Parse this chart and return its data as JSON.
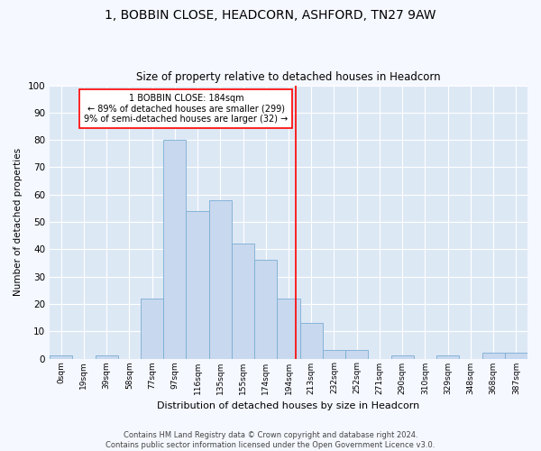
{
  "title": "1, BOBBIN CLOSE, HEADCORN, ASHFORD, TN27 9AW",
  "subtitle": "Size of property relative to detached houses in Headcorn",
  "xlabel": "Distribution of detached houses by size in Headcorn",
  "ylabel": "Number of detached properties",
  "bar_labels": [
    "0sqm",
    "19sqm",
    "39sqm",
    "58sqm",
    "77sqm",
    "97sqm",
    "116sqm",
    "135sqm",
    "155sqm",
    "174sqm",
    "194sqm",
    "213sqm",
    "232sqm",
    "252sqm",
    "271sqm",
    "290sqm",
    "310sqm",
    "329sqm",
    "348sqm",
    "368sqm",
    "387sqm"
  ],
  "bar_values": [
    1,
    0,
    1,
    0,
    22,
    80,
    54,
    58,
    42,
    36,
    22,
    13,
    3,
    3,
    0,
    1,
    0,
    1,
    0,
    2,
    2
  ],
  "bar_color": "#c8d8ee",
  "bar_edge_color": "#7aadd4",
  "fig_background_color": "#f5f8ff",
  "ax_background_color": "#dde8f5",
  "grid_color": "#ffffff",
  "annotation_text_line1": "1 BOBBIN CLOSE: 184sqm",
  "annotation_text_line2": "← 89% of detached houses are smaller (299)",
  "annotation_text_line3": "9% of semi-detached houses are larger (32) →",
  "vline_position": 10.3,
  "ylim": [
    0,
    100
  ],
  "footer_text": "Contains HM Land Registry data © Crown copyright and database right 2024.\nContains public sector information licensed under the Open Government Licence v3.0."
}
